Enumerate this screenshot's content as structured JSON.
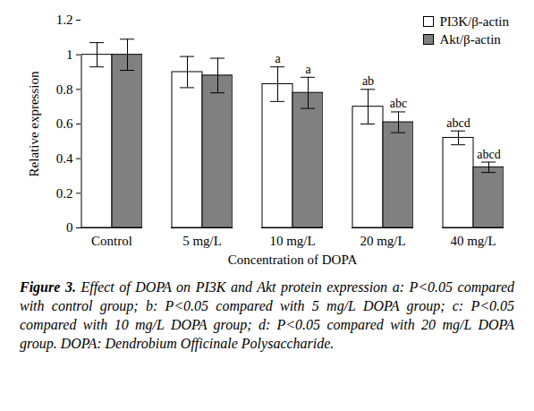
{
  "chart_data": {
    "type": "bar",
    "figure_label": "Figure 3.",
    "caption": "Effect of DOPA on PI3K and Akt protein expression a: P<0.05 compared with control group; b: P<0.05 compared with 5 mg/L DOPA group; c: P<0.05 compared with 10 mg/L DOPA group; d: P<0.05 compared with 20 mg/L DOPA group. DOPA: Dendrobium Officinale Polysaccharide.",
    "x_label": "Concentration of DOPA",
    "y_label": "Relative expression",
    "categories": [
      "Control",
      "5 mg/L",
      "10 mg/L",
      "20 mg/L",
      "40 mg/L"
    ],
    "series": [
      {
        "name": "PI3K/β-actin",
        "color": "#ffffff",
        "values": [
          1.0,
          0.9,
          0.83,
          0.7,
          0.52
        ],
        "errors": [
          0.07,
          0.09,
          0.1,
          0.1,
          0.04
        ],
        "annotations": [
          null,
          null,
          "a",
          "ab",
          "abcd"
        ]
      },
      {
        "name": "Akt/β-actin",
        "color": "#808080",
        "values": [
          1.0,
          0.88,
          0.78,
          0.61,
          0.35
        ],
        "errors": [
          0.09,
          0.1,
          0.09,
          0.06,
          0.03
        ],
        "annotations": [
          null,
          null,
          "a",
          "abc",
          "abcd"
        ]
      }
    ],
    "ylim": [
      0,
      1.2
    ],
    "yticks": [
      0,
      0.2,
      0.4,
      0.6,
      0.8,
      1,
      1.2
    ],
    "legend": "top-right",
    "grid": false
  }
}
